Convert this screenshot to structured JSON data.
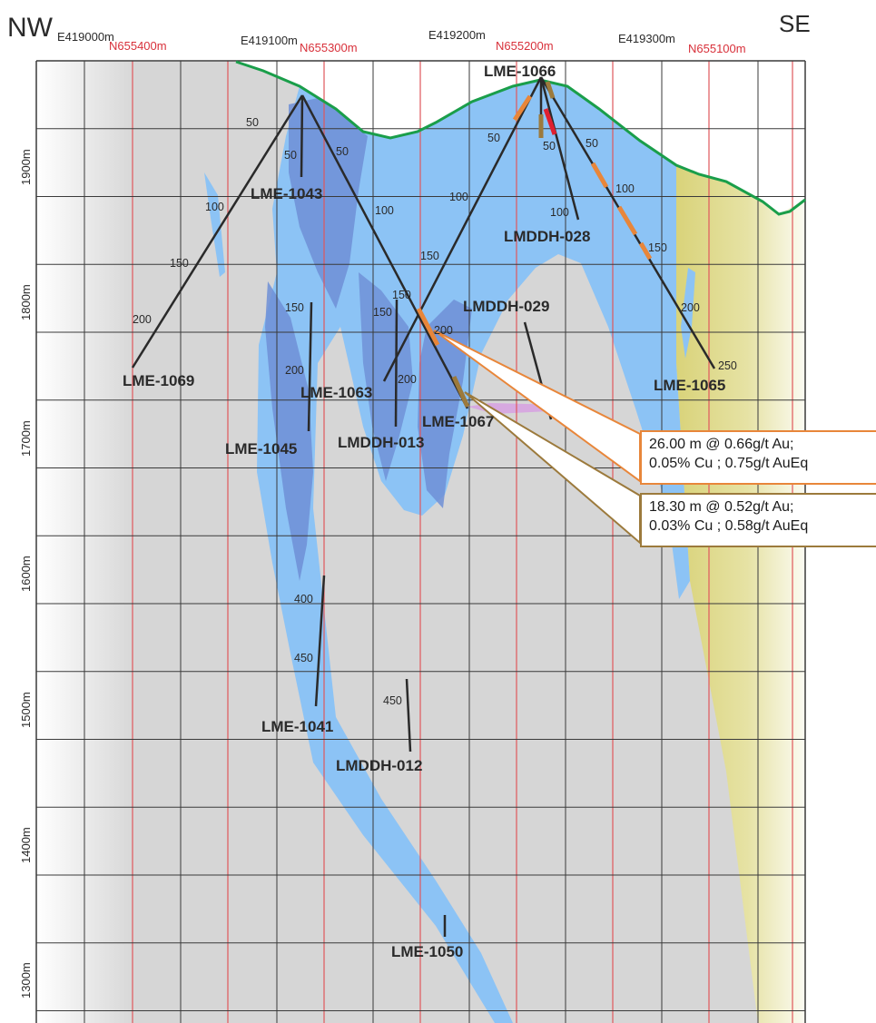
{
  "orientation": {
    "left": "NW",
    "right": "SE"
  },
  "eastings": [
    "E419000m",
    "E419100m",
    "E419200m",
    "E419300m"
  ],
  "northings": [
    "N655400m",
    "N655300m",
    "N655200m",
    "N655100m"
  ],
  "elevations": [
    "1900m",
    "1800m",
    "1700m",
    "1600m",
    "1500m",
    "1400m",
    "1300m"
  ],
  "holes": {
    "lme1066": "LME-1066",
    "lme1043": "LME-1043",
    "lmddh028": "LMDDH-028",
    "lme1069": "LME-1069",
    "lmddh029": "LMDDH-029",
    "lme1063": "LME-1063",
    "lme1065": "LME-1065",
    "lme1067": "LME-1067",
    "lme1045": "LME-1045",
    "lmddh013": "LMDDH-013",
    "lme1041": "LME-1041",
    "lmddh012": "LMDDH-012",
    "lme1050": "LME-1050"
  },
  "depths": {
    "d50": "50",
    "d100": "100",
    "d150": "150",
    "d200": "200",
    "d250": "250",
    "d400": "400",
    "d450": "450"
  },
  "callouts": [
    {
      "line1": "26.00 m @ 0.66g/t Au;",
      "line2": "0.05% Cu ; 0.75g/t AuEq",
      "color": "#e8863a"
    },
    {
      "line1": "18.30 m @ 0.52g/t Au;",
      "line2": "0.03% Cu ; 0.58g/t AuEq",
      "color": "#9c7a3c"
    }
  ],
  "colors": {
    "grid_red": "#e0585c",
    "grid_gray": "#3a3a3a",
    "topo": "#1a9e4a",
    "zone_light": "#8cc3f5",
    "zone_dark": "#6e8fd6",
    "yellow": "#d8d27a",
    "background": "#d6d6d6",
    "trace": "#2a2a2a"
  }
}
